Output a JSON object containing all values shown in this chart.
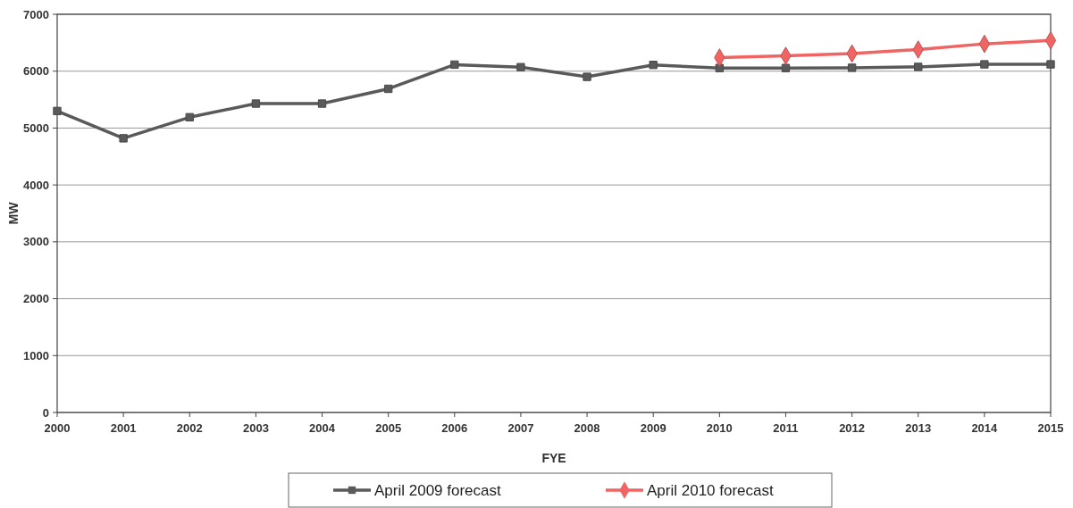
{
  "chart_data": {
    "type": "line",
    "xlabel": "FYE",
    "ylabel": "MW",
    "categories": [
      "2000",
      "2001",
      "2002",
      "2003",
      "2004",
      "2005",
      "2006",
      "2007",
      "2008",
      "2009",
      "2010",
      "2011",
      "2012",
      "2013",
      "2014",
      "2015"
    ],
    "series": [
      {
        "name": "April 2009 forecast",
        "color": "#5a5a5a",
        "marker": "square",
        "values": [
          5300,
          4820,
          5190,
          5430,
          5430,
          5690,
          6115,
          6070,
          5900,
          6110,
          6055,
          6055,
          6060,
          6075,
          6120,
          6120
        ]
      },
      {
        "name": "April 2010 forecast",
        "color": "#f06464",
        "marker": "diamond",
        "values": [
          null,
          null,
          null,
          null,
          null,
          null,
          null,
          null,
          null,
          null,
          6240,
          6270,
          6310,
          6380,
          6480,
          6540
        ]
      }
    ],
    "ylim": [
      0,
      7000
    ],
    "yticks": [
      0,
      1000,
      2000,
      3000,
      4000,
      5000,
      6000,
      7000
    ],
    "grid": "y",
    "legend": "bottom",
    "line_style": "solid"
  }
}
